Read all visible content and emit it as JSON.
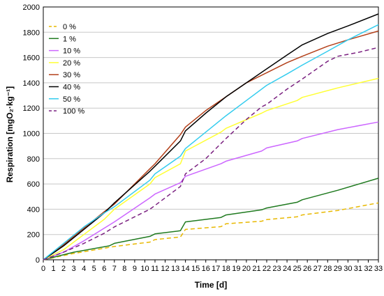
{
  "chart_data": {
    "type": "line",
    "xlabel": "Time [d]",
    "ylabel": "Respiration [mgO₂·kg⁻¹]",
    "xlim": [
      0,
      33
    ],
    "ylim": [
      0,
      2000
    ],
    "x_ticks": [
      0,
      1,
      2,
      3,
      4,
      5,
      6,
      7,
      8,
      9,
      10,
      11,
      12,
      13,
      14,
      15,
      16,
      17,
      18,
      19,
      20,
      21,
      22,
      23,
      24,
      25,
      26,
      27,
      28,
      29,
      30,
      31,
      32,
      33
    ],
    "y_ticks": [
      0,
      200,
      400,
      600,
      800,
      1000,
      1200,
      1400,
      1600,
      1800,
      2000
    ],
    "grid": "horizontal",
    "legend_position": "top-left",
    "series": [
      {
        "name": "0 %",
        "color": "#e8b800",
        "dash": "dashed",
        "points": [
          [
            0,
            0
          ],
          [
            3,
            50
          ],
          [
            7,
            105
          ],
          [
            10.5,
            140
          ],
          [
            11,
            160
          ],
          [
            13.5,
            180
          ],
          [
            14,
            240
          ],
          [
            17.5,
            262
          ],
          [
            18,
            285
          ],
          [
            21.5,
            305
          ],
          [
            22,
            318
          ],
          [
            25,
            340
          ],
          [
            25.5,
            355
          ],
          [
            29,
            390
          ],
          [
            33,
            450
          ]
        ]
      },
      {
        "name": "1 %",
        "color": "#1f7a1f",
        "dash": "solid",
        "points": [
          [
            0,
            0
          ],
          [
            3,
            60
          ],
          [
            6.5,
            110
          ],
          [
            7,
            130
          ],
          [
            10.5,
            185
          ],
          [
            11,
            205
          ],
          [
            13.5,
            230
          ],
          [
            14,
            300
          ],
          [
            17.5,
            335
          ],
          [
            18,
            355
          ],
          [
            21.5,
            395
          ],
          [
            22,
            410
          ],
          [
            25,
            455
          ],
          [
            25.5,
            475
          ],
          [
            29,
            550
          ],
          [
            33,
            645
          ]
        ]
      },
      {
        "name": "10 %",
        "color": "#cc66ff",
        "dash": "solid",
        "points": [
          [
            0,
            0
          ],
          [
            2,
            60
          ],
          [
            4,
            150
          ],
          [
            6,
            250
          ],
          [
            7,
            300
          ],
          [
            10.5,
            490
          ],
          [
            11,
            520
          ],
          [
            13.5,
            610
          ],
          [
            14,
            660
          ],
          [
            17.5,
            760
          ],
          [
            18,
            780
          ],
          [
            21.5,
            860
          ],
          [
            22,
            885
          ],
          [
            25,
            940
          ],
          [
            25.5,
            960
          ],
          [
            29,
            1030
          ],
          [
            33,
            1090
          ]
        ]
      },
      {
        "name": "20 %",
        "color": "#ffff33",
        "dash": "solid",
        "points": [
          [
            0,
            0
          ],
          [
            2,
            80
          ],
          [
            4,
            200
          ],
          [
            6,
            320
          ],
          [
            7,
            400
          ],
          [
            10.5,
            600
          ],
          [
            11,
            650
          ],
          [
            13.5,
            760
          ],
          [
            14,
            860
          ],
          [
            17.5,
            1010
          ],
          [
            18,
            1040
          ],
          [
            21.5,
            1160
          ],
          [
            22,
            1180
          ],
          [
            25,
            1260
          ],
          [
            25.5,
            1285
          ],
          [
            29,
            1360
          ],
          [
            33,
            1435
          ]
        ]
      },
      {
        "name": "30 %",
        "color": "#b3401a",
        "dash": "solid",
        "points": [
          [
            0,
            0
          ],
          [
            2,
            120
          ],
          [
            4,
            250
          ],
          [
            6,
            380
          ],
          [
            7,
            440
          ],
          [
            10.5,
            720
          ],
          [
            11,
            760
          ],
          [
            13.5,
            990
          ],
          [
            14,
            1050
          ],
          [
            16,
            1180
          ],
          [
            18,
            1290
          ],
          [
            20,
            1400
          ],
          [
            22,
            1480
          ],
          [
            24,
            1560
          ],
          [
            25.5,
            1610
          ],
          [
            28,
            1690
          ],
          [
            30,
            1740
          ],
          [
            33,
            1810
          ]
        ]
      },
      {
        "name": "40 %",
        "color": "#000000",
        "dash": "solid",
        "points": [
          [
            0,
            0
          ],
          [
            2,
            110
          ],
          [
            4,
            240
          ],
          [
            6,
            370
          ],
          [
            7,
            450
          ],
          [
            10.5,
            700
          ],
          [
            11,
            740
          ],
          [
            13.5,
            940
          ],
          [
            14,
            1020
          ],
          [
            16,
            1160
          ],
          [
            18,
            1290
          ],
          [
            20,
            1400
          ],
          [
            22,
            1510
          ],
          [
            24,
            1620
          ],
          [
            25.5,
            1700
          ],
          [
            28,
            1790
          ],
          [
            30,
            1850
          ],
          [
            33,
            1945
          ]
        ]
      },
      {
        "name": "50 %",
        "color": "#33ccee",
        "dash": "solid",
        "points": [
          [
            0,
            0
          ],
          [
            2,
            130
          ],
          [
            4,
            260
          ],
          [
            6,
            370
          ],
          [
            7,
            420
          ],
          [
            10.5,
            630
          ],
          [
            11,
            680
          ],
          [
            13.5,
            820
          ],
          [
            14,
            880
          ],
          [
            16,
            1010
          ],
          [
            18,
            1140
          ],
          [
            20,
            1260
          ],
          [
            22,
            1380
          ],
          [
            24,
            1470
          ],
          [
            25.5,
            1540
          ],
          [
            28,
            1650
          ],
          [
            30,
            1740
          ],
          [
            33,
            1860
          ]
        ]
      },
      {
        "name": "100 %",
        "color": "#7a2080",
        "dash": "dashed",
        "points": [
          [
            0,
            0
          ],
          [
            2,
            60
          ],
          [
            4,
            130
          ],
          [
            6,
            210
          ],
          [
            7,
            260
          ],
          [
            10.5,
            400
          ],
          [
            11,
            430
          ],
          [
            13.5,
            580
          ],
          [
            14,
            680
          ],
          [
            16,
            800
          ],
          [
            18,
            960
          ],
          [
            20,
            1110
          ],
          [
            21.5,
            1210
          ],
          [
            22,
            1230
          ],
          [
            24,
            1350
          ],
          [
            25.5,
            1430
          ],
          [
            28,
            1570
          ],
          [
            29,
            1610
          ],
          [
            31,
            1640
          ],
          [
            33,
            1680
          ]
        ]
      }
    ]
  }
}
